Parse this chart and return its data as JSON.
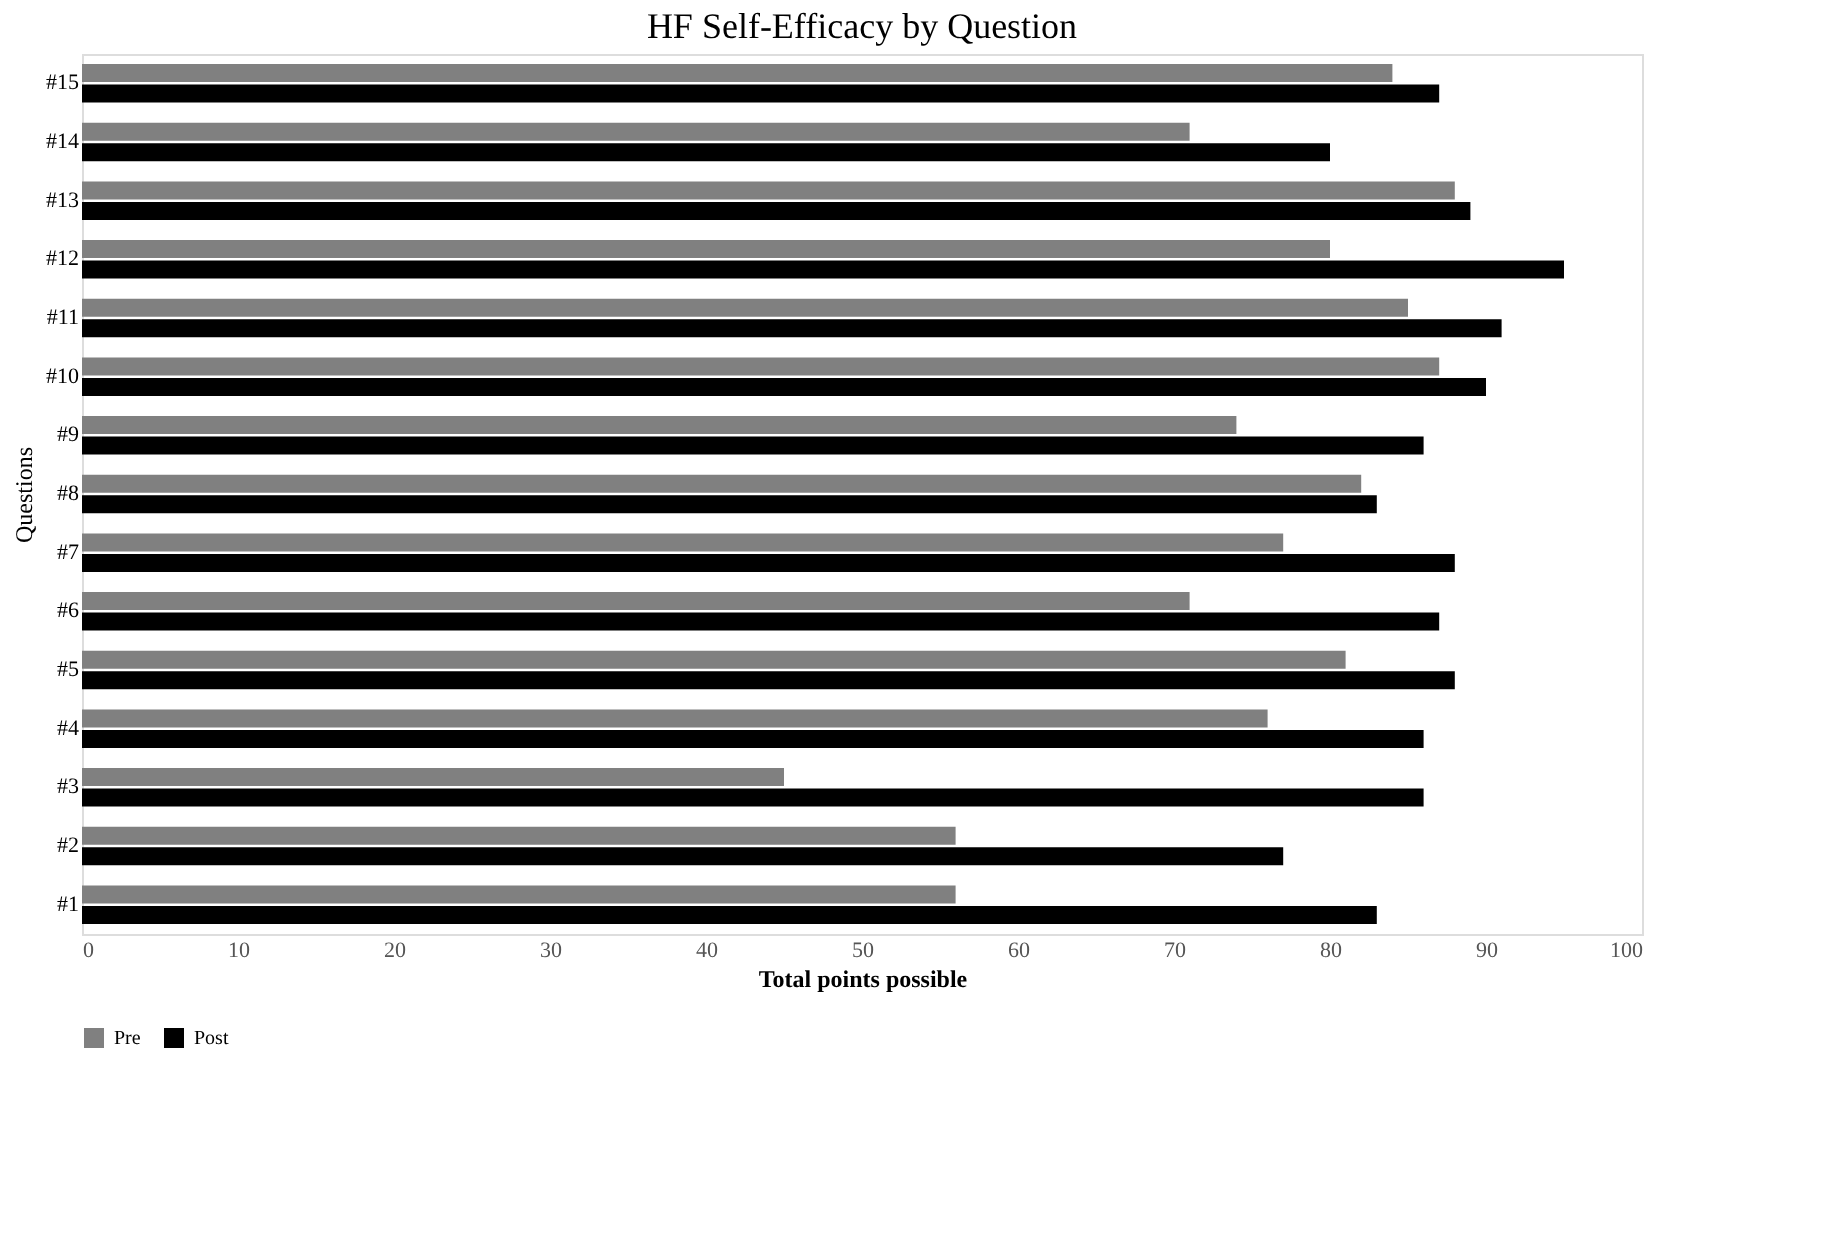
{
  "chart_data": {
    "type": "bar",
    "orientation": "horizontal",
    "title": "HF Self-Efficacy by Question",
    "xlabel": "Total points possible",
    "ylabel": "Questions",
    "categories": [
      "#15",
      "#14",
      "#13",
      "#12",
      "#11",
      "#10",
      "#9",
      "#8",
      "#7",
      "#6",
      "#5",
      "#4",
      "#3",
      "#2",
      "#1"
    ],
    "series": [
      {
        "name": "Pre",
        "color": "#808080",
        "values": [
          84,
          71,
          88,
          80,
          85,
          87,
          74,
          82,
          77,
          71,
          81,
          76,
          45,
          56,
          56
        ]
      },
      {
        "name": "Post",
        "color": "#000000",
        "values": [
          87,
          80,
          89,
          95,
          91,
          90,
          86,
          83,
          88,
          87,
          88,
          86,
          86,
          77,
          83
        ]
      }
    ],
    "xlim": [
      0,
      100
    ],
    "xticks": [
      0,
      10,
      20,
      30,
      40,
      50,
      60,
      70,
      80,
      90,
      100
    ],
    "grid": false,
    "legend": "bottom"
  }
}
